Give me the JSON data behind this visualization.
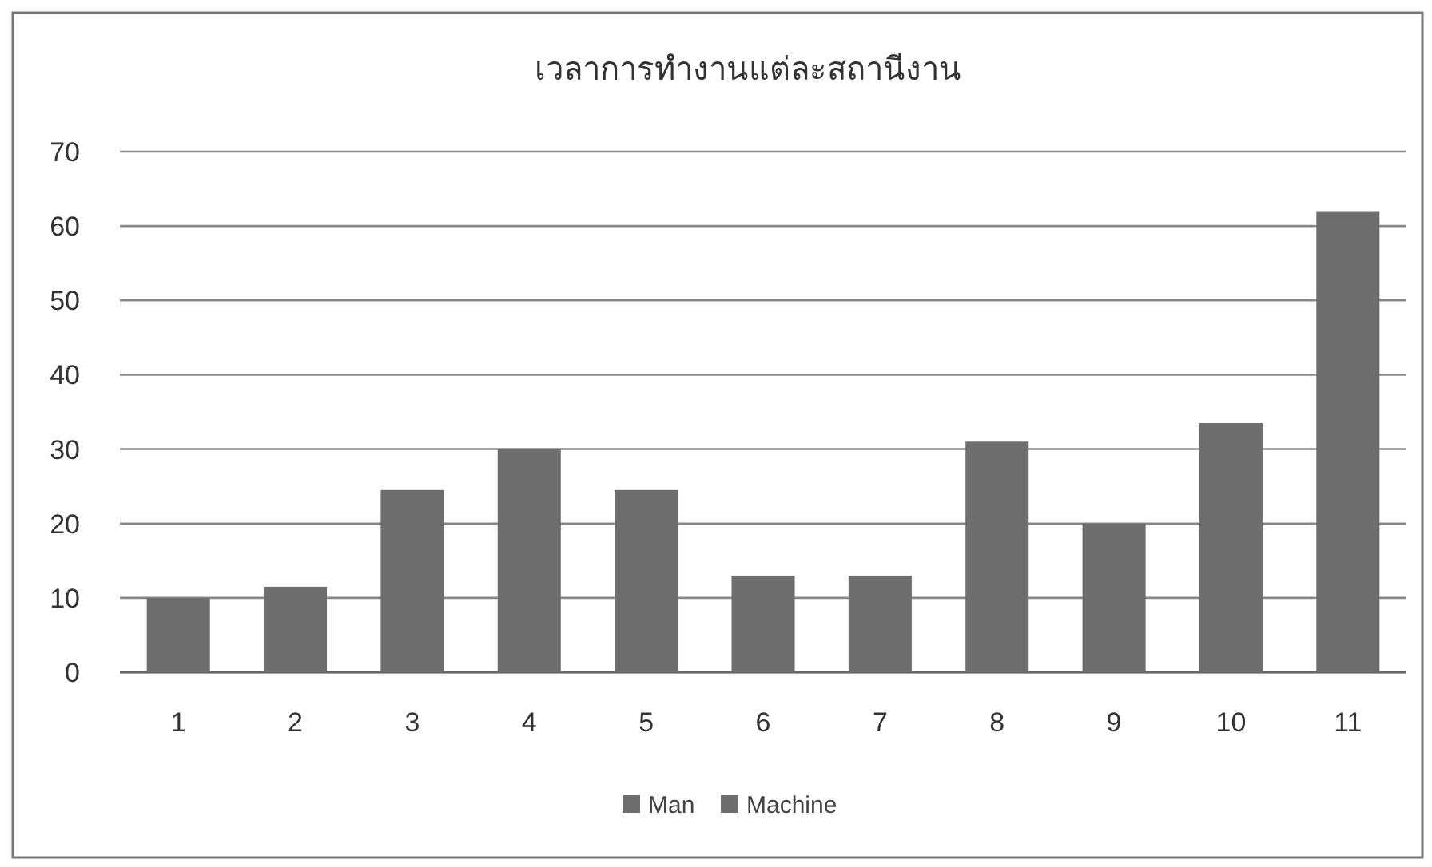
{
  "chart_data": {
    "type": "bar",
    "title": "เวลาการทำงานแต่ละสถานีงาน",
    "categories": [
      "1",
      "2",
      "3",
      "4",
      "5",
      "6",
      "7",
      "8",
      "9",
      "10",
      "11"
    ],
    "series": [
      {
        "name": "Man",
        "color": "#6e6e6e",
        "values": [
          10,
          11.5,
          24.5,
          30,
          24.5,
          13,
          13,
          31,
          20,
          33.5,
          62
        ]
      },
      {
        "name": "Machine",
        "color": "#6e6e6e",
        "values": [
          null,
          null,
          null,
          null,
          null,
          null,
          null,
          null,
          null,
          null,
          null
        ]
      }
    ],
    "ylim": [
      0,
      70
    ],
    "yticks": [
      0,
      10,
      20,
      30,
      40,
      50,
      60,
      70
    ],
    "grid": "y",
    "legend": "bottom"
  }
}
